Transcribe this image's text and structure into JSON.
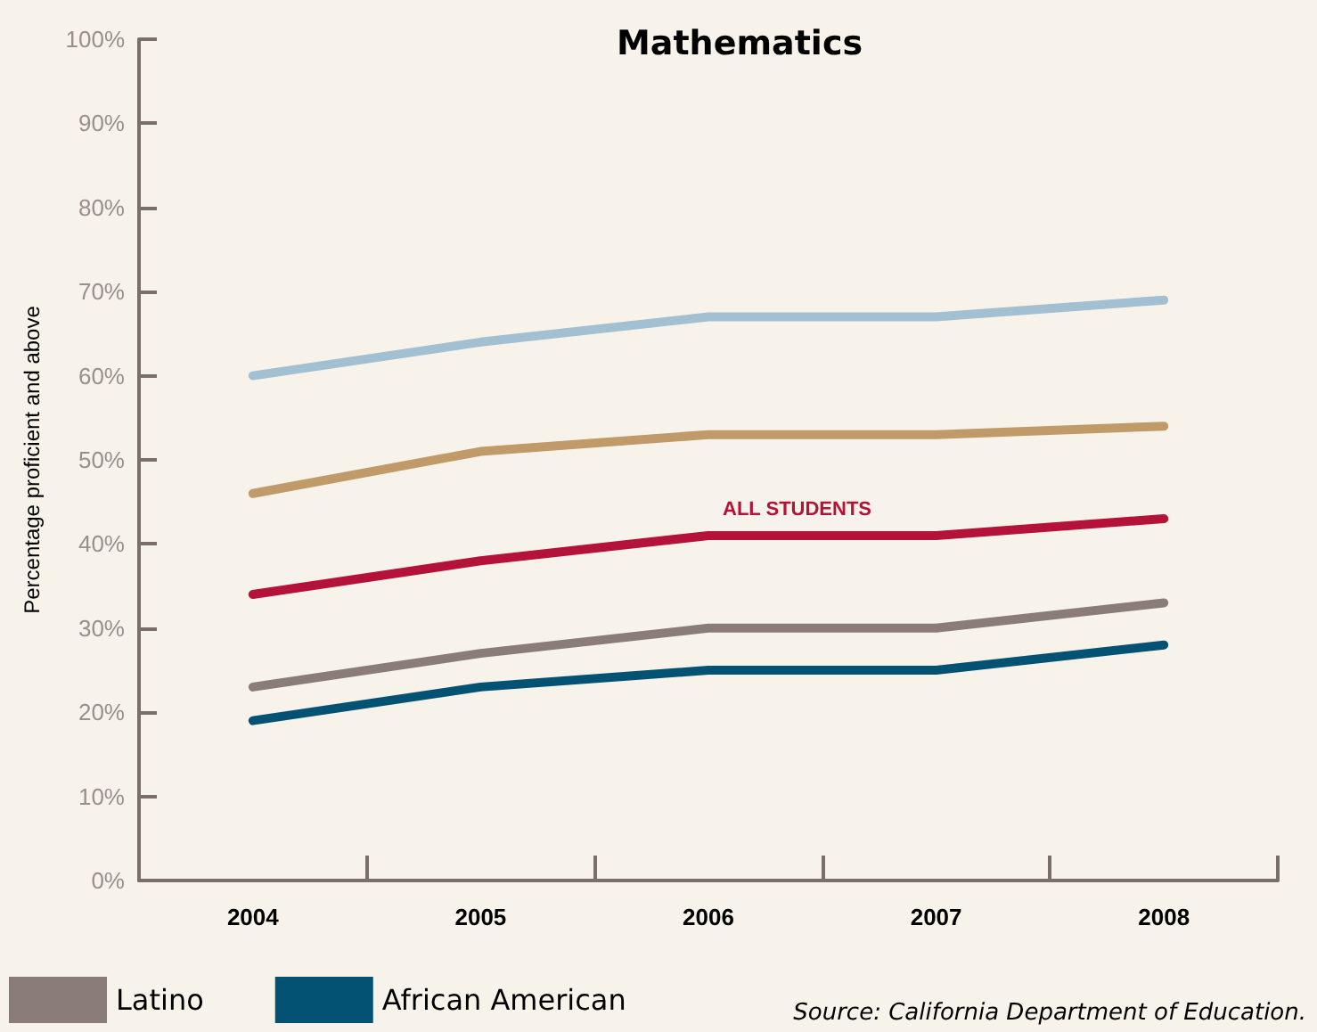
{
  "chart_data": {
    "type": "line",
    "title": "Mathematics",
    "ylabel": "Percentage proficient and above",
    "categories": [
      "2004",
      "2005",
      "2006",
      "2007",
      "2008"
    ],
    "series": [
      {
        "color": "#a3bfd2",
        "values": [
          60,
          64,
          67,
          67,
          69
        ]
      },
      {
        "color": "#c09a68",
        "values": [
          46,
          51,
          53,
          53,
          54
        ]
      },
      {
        "color": "#b5123a",
        "values": [
          34,
          38,
          41,
          41,
          43
        ]
      },
      {
        "name": "Latino",
        "color": "#8a7d78",
        "values": [
          23,
          27,
          30,
          30,
          33
        ]
      },
      {
        "name": "African American",
        "color": "#035274",
        "values": [
          19,
          23,
          25,
          25,
          28
        ]
      }
    ],
    "ylim": [
      0,
      100
    ],
    "yticks": [
      {
        "value": 0,
        "label": "0%"
      },
      {
        "value": 10,
        "label": "10%"
      },
      {
        "value": 20,
        "label": "20%"
      },
      {
        "value": 30,
        "label": "30%"
      },
      {
        "value": 40,
        "label": "40%"
      },
      {
        "value": 50,
        "label": "50%"
      },
      {
        "value": 60,
        "label": "60%"
      },
      {
        "value": 70,
        "label": "70%"
      },
      {
        "value": 80,
        "label": "80%"
      },
      {
        "value": 90,
        "label": "90%"
      },
      {
        "value": 100,
        "label": "100%"
      }
    ],
    "annotations": [
      {
        "text": "ALL STUDENTS",
        "x": "2006",
        "y": 41
      },
      "Source: California Department of Education."
    ],
    "legend": "bottom left",
    "grid": false,
    "marker": "none",
    "line_style": "solid"
  }
}
